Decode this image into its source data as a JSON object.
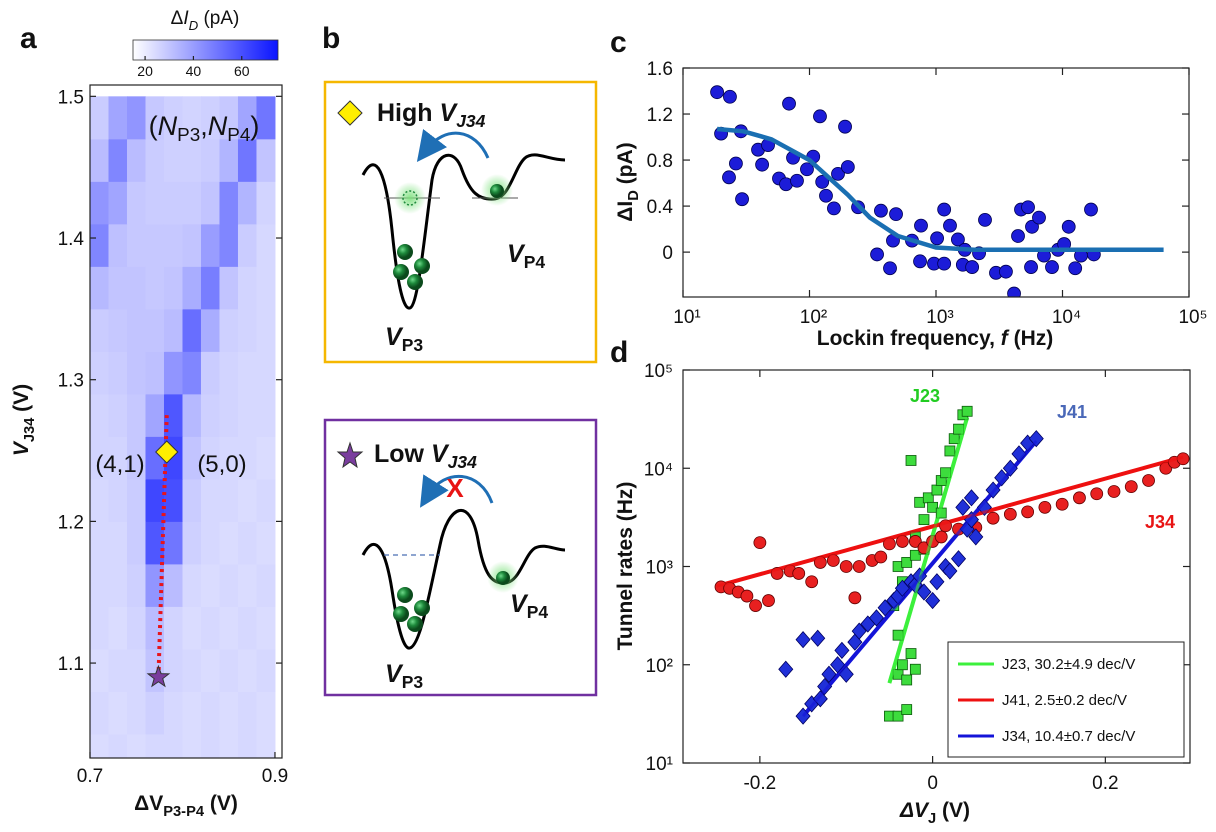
{
  "panel_labels": [
    "a",
    "b",
    "c",
    "d"
  ],
  "chart_data": [
    {
      "type": "heatmap",
      "x": [
        0.71,
        0.73,
        0.75,
        0.77,
        0.79,
        0.81,
        0.83,
        0.85,
        0.87,
        0.89
      ],
      "y": [
        1.035,
        1.065,
        1.095,
        1.125,
        1.155,
        1.185,
        1.215,
        1.245,
        1.275,
        1.305,
        1.335,
        1.365,
        1.395,
        1.425,
        1.455,
        1.485
      ],
      "z": [
        [
          24,
          25,
          24,
          25,
          25,
          24,
          25,
          24,
          25,
          24
        ],
        [
          25,
          24,
          25,
          27,
          25,
          24,
          25,
          24,
          25,
          24
        ],
        [
          24,
          25,
          25,
          30,
          26,
          25,
          24,
          25,
          24,
          25
        ],
        [
          25,
          24,
          26,
          32,
          26,
          24,
          25,
          24,
          25,
          24
        ],
        [
          25,
          25,
          27,
          42,
          32,
          25,
          24,
          25,
          24,
          25
        ],
        [
          25,
          25,
          28,
          58,
          50,
          27,
          25,
          24,
          25,
          24
        ],
        [
          25,
          26,
          28,
          62,
          60,
          28,
          25,
          25,
          24,
          25
        ],
        [
          26,
          26,
          29,
          52,
          62,
          30,
          26,
          25,
          25,
          24
        ],
        [
          26,
          27,
          29,
          38,
          58,
          33,
          27,
          26,
          25,
          25
        ],
        [
          27,
          28,
          30,
          31,
          42,
          46,
          28,
          26,
          25,
          25
        ],
        [
          28,
          29,
          30,
          30,
          32,
          52,
          36,
          27,
          26,
          25
        ],
        [
          33,
          30,
          30,
          29,
          30,
          36,
          48,
          30,
          26,
          25
        ],
        [
          46,
          31,
          29,
          29,
          29,
          30,
          40,
          46,
          28,
          25
        ],
        [
          42,
          38,
          29,
          28,
          28,
          28,
          30,
          46,
          34,
          26
        ],
        [
          32,
          46,
          32,
          28,
          27,
          27,
          28,
          34,
          50,
          30
        ],
        [
          28,
          38,
          42,
          29,
          27,
          26,
          27,
          29,
          38,
          50
        ]
      ],
      "xlim": [
        0.7,
        0.9076
      ],
      "ylim": [
        1.033,
        1.508
      ],
      "xticks": [
        0.7,
        0.9
      ],
      "yticks": [
        1.1,
        1.2,
        1.3,
        1.4,
        1.5
      ],
      "clim": [
        15,
        75
      ],
      "cticks": [
        20,
        40,
        60
      ],
      "color": "#0a14ff",
      "colorbar_label": [
        "Δ",
        "I",
        "D",
        " (pA)"
      ],
      "xlabel": [
        "ΔV",
        "P3-P4",
        " (V)"
      ],
      "ylabel": [
        "V",
        "J34",
        " (V)"
      ],
      "annotations": [
        [
          "(",
          "N",
          "P3",
          ",",
          "N",
          "P4",
          ")"
        ],
        [
          "(4,1)"
        ],
        [
          "(5,0)"
        ]
      ],
      "markers": [
        {
          "x": 0.783,
          "y": 1.249,
          "color": "#ffee00"
        },
        {
          "x": 0.774,
          "y": 1.09,
          "color": "#7a3d9e"
        }
      ],
      "path_line": {
        "x": [
          0.783,
          0.774
        ],
        "values": [
          1.275,
          1.09
        ],
        "color": "#e8141a"
      }
    },
    {
      "type": "scatter",
      "xscale": "log",
      "series": [
        {
          "color": "#1c1cd8",
          "x": [
            18.6,
            23.5,
            20.0,
            28.7,
            26.2,
            23.1,
            29.3,
            39.2,
            42.2,
            47.0,
            57.4,
            65.2,
            79.6,
            68.9,
            74.1,
            95.5,
            107,
            126,
            121,
            135,
            168,
            156,
            191,
            201,
            242,
            342,
            367,
            433,
            457,
            483,
            646,
            748,
            761,
            964,
            1020,
            1160,
            1160,
            1290,
            1490,
            1630,
            1690,
            1930,
            2190,
            2440,
            2980,
            3570,
            4140,
            4450,
            4700,
            5340,
            5640,
            5740,
            6520,
            7140,
            8260,
            9210,
            10300,
            11200,
            12600,
            14000,
            16800,
            17700
          ],
          "values": [
            1.39,
            1.35,
            1.03,
            1.05,
            0.77,
            0.65,
            0.46,
            0.89,
            0.76,
            0.93,
            0.64,
            0.59,
            0.62,
            1.29,
            0.82,
            0.72,
            0.83,
            0.61,
            1.18,
            0.49,
            0.68,
            0.38,
            1.09,
            0.74,
            0.39,
            -0.02,
            0.36,
            -0.14,
            0.1,
            0.33,
            0.1,
            -0.08,
            0.23,
            -0.1,
            0.12,
            -0.1,
            0.37,
            0.23,
            0.11,
            -0.11,
            0.02,
            -0.13,
            -0.01,
            0.28,
            -0.18,
            -0.17,
            -0.36,
            0.14,
            0.37,
            0.39,
            -0.13,
            0.22,
            0.3,
            -0.03,
            -0.13,
            0.02,
            0.07,
            0.22,
            -0.14,
            -0.03,
            0.37,
            -0.02
          ]
        }
      ],
      "fit": {
        "color": "#1a6fb2",
        "x": [
          18.6,
          30,
          50,
          100,
          200,
          300,
          500,
          1000,
          2000,
          10000,
          63000
        ],
        "values": [
          1.07,
          1.05,
          0.98,
          0.8,
          0.5,
          0.3,
          0.14,
          0.04,
          0.02,
          0.02,
          0.02
        ]
      },
      "xlim": [
        10,
        100000
      ],
      "ylim": [
        -0.39,
        1.6
      ],
      "xticks": [
        {
          "value": 10,
          "label": "10¹"
        },
        {
          "value": 100,
          "label": "10²"
        },
        {
          "value": 1000,
          "label": "10³"
        },
        {
          "value": 10000,
          "label": "10⁴"
        },
        {
          "value": 100000,
          "label": "10⁵"
        }
      ],
      "yticks": [
        0,
        0.4,
        0.8,
        1.2,
        1.6
      ],
      "xlabel": [
        "Lockin frequency, ",
        "f",
        " (Hz)"
      ],
      "ylabel": [
        "ΔI",
        "D",
        " (pA)"
      ]
    },
    {
      "type": "scatter",
      "yscale": "log",
      "legend": "lower right",
      "series": [
        {
          "name": "J23",
          "color": "#3ddc3d",
          "marker": "square",
          "x": [
            -0.05,
            -0.04,
            -0.03,
            -0.04,
            -0.035,
            -0.03,
            -0.02,
            -0.025,
            -0.04,
            -0.045,
            -0.035,
            -0.04,
            -0.03,
            -0.02,
            -0.02,
            -0.01,
            -0.015,
            -0.005,
            0.0,
            0.005,
            0.01,
            0.015,
            -0.025,
            0.02,
            0.025,
            0.03,
            0.035,
            0.04,
            0.01,
            -0.01
          ],
          "values": [
            30,
            30,
            35,
            80,
            100,
            70,
            90,
            130,
            200,
            400,
            700,
            1000,
            1100,
            1300,
            2000,
            3000,
            4500,
            5000,
            4000,
            6000,
            7500,
            9000,
            12000,
            15000,
            20000,
            25000,
            35000,
            38000,
            3500,
            1500
          ]
        },
        {
          "name": "J41",
          "color": "#e82020",
          "marker": "circle",
          "x": [
            -0.245,
            -0.235,
            -0.225,
            -0.215,
            -0.205,
            -0.2,
            -0.19,
            -0.18,
            -0.165,
            -0.155,
            -0.14,
            -0.13,
            -0.115,
            -0.1,
            -0.09,
            -0.085,
            -0.07,
            -0.06,
            -0.05,
            -0.035,
            -0.02,
            -0.01,
            0.0,
            0.01,
            0.015,
            0.03,
            0.05,
            0.07,
            0.09,
            0.11,
            0.13,
            0.15,
            0.17,
            0.19,
            0.21,
            0.23,
            0.25,
            0.27,
            0.28,
            0.29
          ],
          "values": [
            620,
            600,
            550,
            500,
            400,
            1750,
            450,
            850,
            900,
            850,
            700,
            1100,
            1150,
            1000,
            480,
            1000,
            1150,
            1250,
            1700,
            1800,
            1800,
            1550,
            1800,
            2000,
            2600,
            2400,
            2500,
            3100,
            3400,
            3600,
            4000,
            4300,
            5000,
            5500,
            5800,
            6500,
            7500,
            10000,
            11500,
            12500
          ]
        },
        {
          "name": "J34",
          "color": "#2030d8",
          "marker": "diamond",
          "x": [
            -0.15,
            -0.14,
            -0.13,
            -0.125,
            -0.12,
            -0.11,
            -0.105,
            -0.09,
            -0.085,
            -0.075,
            -0.065,
            -0.055,
            -0.045,
            -0.04,
            -0.035,
            -0.025,
            -0.02,
            -0.015,
            -0.01,
            0.0,
            0.005,
            0.015,
            0.02,
            0.03,
            0.04,
            0.045,
            0.05,
            0.06,
            0.07,
            0.08,
            0.09,
            0.1,
            0.11,
            0.12,
            -0.15,
            -0.133,
            -0.1,
            -0.17,
            0.035,
            0.045
          ],
          "values": [
            30,
            40,
            45,
            60,
            80,
            100,
            140,
            170,
            220,
            260,
            300,
            380,
            450,
            500,
            600,
            700,
            650,
            800,
            550,
            450,
            700,
            1000,
            900,
            1200,
            2400,
            3000,
            2000,
            4000,
            6000,
            8000,
            10000,
            14000,
            18000,
            20000,
            180,
            186,
            80,
            90,
            4000,
            5000
          ]
        }
      ],
      "fits": [
        {
          "name": "J23, 30.2±4.9 dec/V",
          "color": "#3cf03c",
          "x": [
            -0.05,
            0.04
          ],
          "values": [
            65,
            33000
          ]
        },
        {
          "name": "J41, 2.5±0.2 dec/V",
          "color": "#ee1111",
          "x": [
            -0.25,
            0.29
          ],
          "values": [
            630,
            13000
          ]
        },
        {
          "name": "J34, 10.4±0.7 dec/V",
          "color": "#1414d8",
          "x": [
            -0.15,
            0.12
          ],
          "values": [
            30,
            19000
          ]
        }
      ],
      "xlim": [
        -0.289,
        0.298
      ],
      "ylim": [
        10,
        100000
      ],
      "xticks": [
        -0.2,
        0,
        0.2
      ],
      "yticks": [
        {
          "value": 10,
          "label": "10¹"
        },
        {
          "value": 100,
          "label": "10²"
        },
        {
          "value": 1000,
          "label": "10³"
        },
        {
          "value": 10000,
          "label": "10⁴"
        },
        {
          "value": 100000,
          "label": "10⁵"
        }
      ],
      "xlabel": [
        "ΔV",
        "J",
        " (V)"
      ],
      "ylabel": [
        "Tunnel rates (Hz)"
      ]
    }
  ],
  "diagram": {
    "top": {
      "title": [
        "High ",
        "V",
        "J34"
      ],
      "label_right": [
        "V",
        "P4"
      ],
      "label_left": [
        "V",
        "P3"
      ]
    },
    "bottom": {
      "title": [
        "Low ",
        "V",
        "J34"
      ],
      "label_right": [
        "V",
        "P4"
      ],
      "label_left": [
        "V",
        "P3"
      ],
      "blocked": "X"
    }
  }
}
